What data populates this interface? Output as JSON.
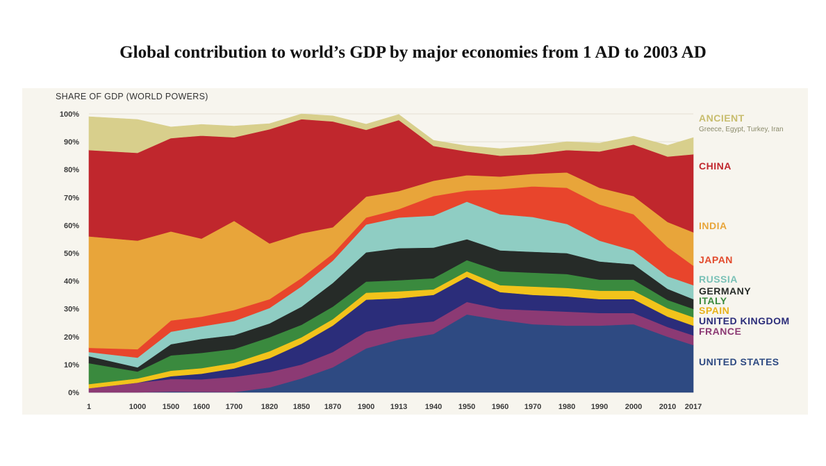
{
  "title": "Global contribution to world’s GDP by major economies from 1 AD to 2003 AD",
  "chart_data": {
    "type": "area",
    "stacked": true,
    "ylabel": "SHARE OF GDP (WORLD POWERS)",
    "ylim": [
      0,
      100
    ],
    "y_ticks": [
      "0%",
      "10%",
      "20%",
      "30%",
      "40%",
      "50%",
      "60%",
      "70%",
      "80%",
      "90%",
      "100%"
    ],
    "categories": [
      "1",
      "1000",
      "1500",
      "1600",
      "1700",
      "1820",
      "1850",
      "1870",
      "1900",
      "1913",
      "1940",
      "1950",
      "1960",
      "1970",
      "1980",
      "1990",
      "2000",
      "2010",
      "2017"
    ],
    "x_positions": [
      1,
      1000,
      1500,
      1600,
      1700,
      1820,
      1850,
      1870,
      1900,
      1913,
      1940,
      1950,
      1960,
      1970,
      1980,
      1990,
      2000,
      2010,
      2017
    ],
    "series": [
      {
        "name": "UNITED STATES",
        "color": "#2e4a82",
        "values": [
          0,
          0,
          0.3,
          0.2,
          0.1,
          1.8,
          5,
          9,
          15.8,
          19,
          21,
          28,
          26,
          24.5,
          24,
          24,
          24.5,
          20,
          17
        ]
      },
      {
        "name": "FRANCE",
        "color": "#8c3a74",
        "values": [
          1.5,
          3.5,
          4.5,
          4.5,
          5.5,
          5.5,
          5,
          5.5,
          6,
          5.3,
          4.5,
          4.5,
          4,
          5,
          5,
          4.5,
          4,
          3.5,
          3.5
        ]
      },
      {
        "name": "UNITED KINGDOM",
        "color": "#2b2d7a",
        "values": [
          0,
          0,
          1,
          2,
          3,
          5,
          7.5,
          9.5,
          11.5,
          9.5,
          9.5,
          9,
          6,
          5.5,
          5.5,
          5,
          5,
          3.7,
          3.5
        ]
      },
      {
        "name": "SPAIN",
        "color": "#f2c31b",
        "values": [
          1.5,
          1.5,
          2,
          2,
          2,
          2.5,
          2.3,
          2.3,
          2.5,
          2.5,
          2,
          2,
          2.5,
          3,
          3,
          3,
          3,
          3,
          3
        ]
      },
      {
        "name": "ITALY",
        "color": "#3a8a3e",
        "values": [
          7.5,
          2.5,
          5.5,
          5.5,
          5,
          5,
          4.5,
          4.5,
          4,
          4,
          4,
          4,
          5,
          5,
          5,
          4,
          4,
          3,
          3
        ]
      },
      {
        "name": "GERMANY",
        "color": "#262b28",
        "values": [
          2.5,
          1.5,
          4,
          5,
          5,
          5,
          6.5,
          8.5,
          10.5,
          11.5,
          11,
          7.5,
          7.5,
          7.5,
          7.5,
          6.5,
          5.5,
          4,
          3.5
        ]
      },
      {
        "name": "RUSSIA",
        "color": "#8fcdc3",
        "values": [
          1.5,
          3.5,
          4.5,
          4.5,
          5,
          5.5,
          7.3,
          8,
          10,
          11,
          11.5,
          13.5,
          13,
          12.5,
          10.5,
          7.5,
          5,
          4.5,
          5
        ]
      },
      {
        "name": "JAPAN",
        "color": "#e8452c",
        "values": [
          1.5,
          3,
          4,
          3.5,
          4,
          3.2,
          3,
          2.5,
          2.5,
          3,
          7,
          4,
          9,
          11,
          13,
          13,
          13,
          10.5,
          7
        ]
      },
      {
        "name": "INDIA",
        "color": "#e8a53a",
        "values": [
          40,
          39,
          32,
          28,
          32,
          20,
          16,
          9.5,
          7.5,
          6.5,
          5.5,
          5.5,
          4.5,
          4.5,
          5.5,
          6,
          6.5,
          9,
          12
        ]
      },
      {
        "name": "CHINA",
        "color": "#c0272d",
        "values": [
          31,
          31.5,
          33.5,
          37,
          30,
          41,
          41,
          38,
          24,
          25.5,
          12.5,
          8.5,
          7.5,
          7,
          8,
          13,
          18.5,
          23.5,
          28
        ]
      },
      {
        "name": "ANCIENT",
        "color": "#d8cf8c",
        "values": [
          12,
          12,
          4,
          4,
          4,
          2,
          2,
          2,
          2,
          2,
          2,
          2,
          2.5,
          3,
          3,
          3,
          3,
          4,
          6
        ]
      }
    ],
    "legend": [
      {
        "label": "ANCIENT",
        "sublabel": "Greece, Egypt, Turkey, Iran",
        "color": "#c8bd6e"
      },
      {
        "label": "CHINA",
        "color": "#c0272d"
      },
      {
        "label": "INDIA",
        "color": "#e8a53a"
      },
      {
        "label": "JAPAN",
        "color": "#e24a2c"
      },
      {
        "label": "RUSSIA",
        "color": "#79c1b6"
      },
      {
        "label": "GERMANY",
        "color": "#262b28"
      },
      {
        "label": "ITALY",
        "color": "#3a8a3e"
      },
      {
        "label": "SPAIN",
        "color": "#e8b21a"
      },
      {
        "label": "UNITED KINGDOM",
        "color": "#2b2d7a"
      },
      {
        "label": "FRANCE",
        "color": "#8c3a74"
      },
      {
        "label": "UNITED STATES",
        "color": "#2e4a82"
      }
    ]
  }
}
